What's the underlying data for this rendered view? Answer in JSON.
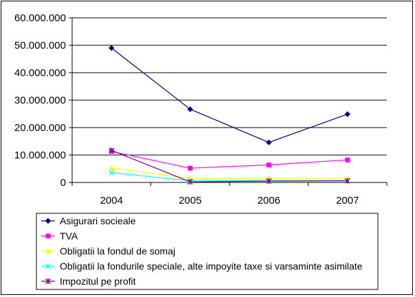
{
  "chart_data": {
    "type": "line",
    "x": [
      "2004",
      "2005",
      "2006",
      "2007"
    ],
    "ylim": [
      0,
      60000000
    ],
    "yticks": [
      0,
      10000000,
      20000000,
      30000000,
      40000000,
      50000000,
      60000000
    ],
    "ytick_labels": [
      "0",
      "10.000.000",
      "20.000.000",
      "30.000.000",
      "40.000.000",
      "50.000.000",
      "60.000.000"
    ],
    "grid": "horizontal",
    "legend_position": "bottom",
    "series": [
      {
        "name": "Asigurari socieale",
        "values": [
          49000000,
          26700000,
          14600000,
          24900000
        ],
        "color": "#000080",
        "marker": "diamond"
      },
      {
        "name": "TVA",
        "values": [
          11300000,
          5200000,
          6400000,
          8200000
        ],
        "color": "#ff00ff",
        "marker": "square"
      },
      {
        "name": "Obligatii la fondul de somaj",
        "values": [
          5300000,
          1500000,
          1600000,
          1600000
        ],
        "color": "#ffff00",
        "marker": "triangle"
      },
      {
        "name": "Obligatii la fondurile speciale, alte impoyite taxe si varsaminte asimilate",
        "values": [
          3600000,
          600000,
          700000,
          700000
        ],
        "color": "#00ffff",
        "marker": "x"
      },
      {
        "name": "Impozitul pe profit",
        "values": [
          11700000,
          200000,
          500000,
          600000
        ],
        "color": "#800080",
        "marker": "star"
      }
    ]
  }
}
